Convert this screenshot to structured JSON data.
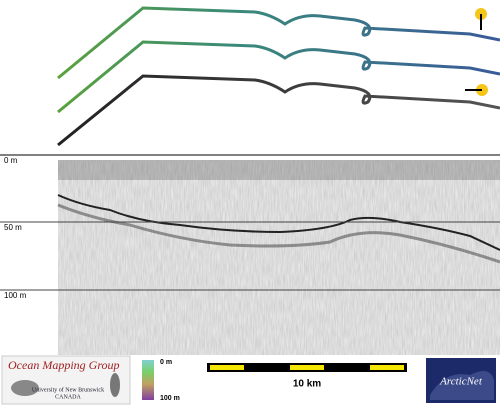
{
  "depth_labels": [
    "0 m",
    "50 m",
    "100 m"
  ],
  "logo": {
    "title": "Ocean Mapping Group",
    "line1": "University of New Brunswick",
    "line2": "CANADA"
  },
  "color_scale": {
    "top": "0 m",
    "bottom": "100 m"
  },
  "scale_bar": {
    "label": "10 km"
  },
  "partner": {
    "name": "ArcticNet"
  }
}
